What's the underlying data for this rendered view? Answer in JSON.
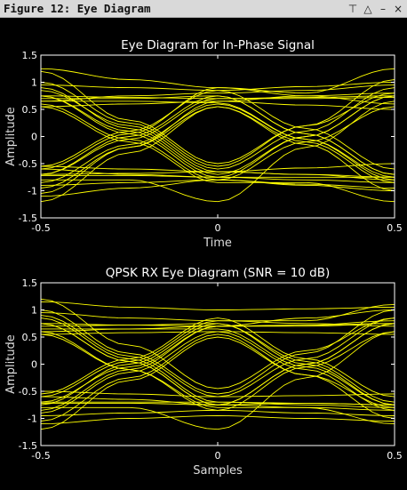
{
  "window": {
    "title": "Figure 12: Eye Diagram",
    "controls": [
      "⊤",
      "△",
      "–",
      "×"
    ]
  },
  "colors": {
    "trace": "#ffff00",
    "background": "#000000",
    "axis": "#ffffff"
  },
  "chart_data": [
    {
      "type": "line",
      "title": "Eye Diagram for In-Phase Signal",
      "xlabel": "Time",
      "ylabel": "Amplitude",
      "xlim": [
        -0.5,
        0.5
      ],
      "ylim": [
        -1.5,
        1.5
      ],
      "xticks": [
        "-0.5",
        "0",
        "0.5"
      ],
      "yticks": [
        "1.5",
        "1",
        "0.5",
        "0",
        "-0.5",
        "-1",
        "-1.5"
      ],
      "grid": false,
      "x": [
        -0.5,
        -0.25,
        0,
        0.25,
        0.5
      ],
      "series": [
        {
          "values": [
            0.75,
            0.72,
            0.7,
            0.72,
            0.75
          ]
        },
        {
          "values": [
            0.95,
            0.9,
            0.85,
            0.92,
            1.0
          ]
        },
        {
          "values": [
            0.55,
            0.6,
            0.65,
            0.58,
            0.5
          ]
        },
        {
          "values": [
            1.25,
            1.05,
            0.9,
            0.75,
            0.6
          ]
        },
        {
          "values": [
            0.65,
            0.75,
            0.8,
            0.85,
            0.95
          ]
        },
        {
          "values": [
            -0.7,
            -0.68,
            -0.65,
            -0.7,
            -0.75
          ]
        },
        {
          "values": [
            -0.9,
            -0.85,
            -0.8,
            -0.88,
            -0.95
          ]
        },
        {
          "values": [
            -0.55,
            -0.6,
            -0.65,
            -0.58,
            -0.5
          ]
        },
        {
          "values": [
            -1.1,
            -0.95,
            -0.8,
            -0.9,
            -1.0
          ]
        },
        {
          "values": [
            -0.6,
            -0.7,
            -0.75,
            -0.8,
            -0.85
          ]
        },
        {
          "values": [
            0.75,
            0.1,
            -0.7,
            0.0,
            0.75
          ]
        },
        {
          "values": [
            0.85,
            0.2,
            -0.6,
            0.1,
            0.9
          ]
        },
        {
          "values": [
            0.6,
            -0.05,
            -0.8,
            -0.1,
            0.55
          ]
        },
        {
          "values": [
            1.0,
            0.25,
            -0.55,
            0.2,
            1.05
          ]
        },
        {
          "values": [
            -0.7,
            0.0,
            0.75,
            0.05,
            -0.7
          ]
        },
        {
          "values": [
            -0.85,
            -0.15,
            0.6,
            -0.05,
            -0.8
          ]
        },
        {
          "values": [
            -0.55,
            0.1,
            0.85,
            0.15,
            -0.6
          ]
        },
        {
          "values": [
            -1.05,
            -0.2,
            0.55,
            -0.15,
            -1.0
          ]
        },
        {
          "values": [
            0.75,
            0.05,
            -0.75,
            -0.75,
            -0.75
          ]
        },
        {
          "values": [
            0.7,
            0.7,
            0.75,
            0.05,
            -0.7
          ]
        },
        {
          "values": [
            -0.7,
            -0.05,
            0.7,
            0.7,
            0.72
          ]
        },
        {
          "values": [
            -0.72,
            -0.72,
            -0.75,
            0.0,
            0.75
          ]
        },
        {
          "values": [
            0.9,
            0.15,
            -0.65,
            -0.7,
            -0.8
          ]
        },
        {
          "values": [
            -0.95,
            -0.2,
            0.65,
            0.75,
            0.8
          ]
        },
        {
          "values": [
            1.2,
            0.3,
            -0.5,
            0.2,
            0.8
          ]
        },
        {
          "values": [
            -1.2,
            -0.3,
            0.55,
            -0.1,
            -0.85
          ]
        },
        {
          "values": [
            0.65,
            0.65,
            0.62,
            -0.05,
            -0.75
          ]
        },
        {
          "values": [
            -0.8,
            -0.8,
            -1.2,
            -0.2,
            0.65
          ]
        },
        {
          "values": [
            0.55,
            -0.1,
            -0.85,
            -0.85,
            -1.2
          ]
        },
        {
          "values": [
            -0.6,
            0.05,
            0.9,
            0.8,
            1.25
          ]
        }
      ]
    },
    {
      "type": "line",
      "title": "QPSK RX Eye Diagram (SNR = 10 dB)",
      "xlabel": "Samples",
      "ylabel": "Amplitude",
      "xlim": [
        -0.5,
        0.5
      ],
      "ylim": [
        -1.5,
        1.5
      ],
      "xticks": [
        "-0.5",
        "0",
        "0.5"
      ],
      "yticks": [
        "1.5",
        "1",
        "0.5",
        "0",
        "-0.5",
        "-1",
        "-1.5"
      ],
      "grid": false,
      "x": [
        -0.5,
        -0.25,
        0,
        0.25,
        0.5
      ],
      "series": [
        {
          "values": [
            0.75,
            0.72,
            0.7,
            0.72,
            0.75
          ]
        },
        {
          "values": [
            1.15,
            1.05,
            1.0,
            1.02,
            1.05
          ]
        },
        {
          "values": [
            0.55,
            0.58,
            0.6,
            0.58,
            0.55
          ]
        },
        {
          "values": [
            0.95,
            0.85,
            0.8,
            0.75,
            0.7
          ]
        },
        {
          "values": [
            0.6,
            0.65,
            0.7,
            0.85,
            1.0
          ]
        },
        {
          "values": [
            -0.7,
            -0.7,
            -0.7,
            -0.72,
            -0.75
          ]
        },
        {
          "values": [
            -0.95,
            -0.9,
            -0.85,
            -0.9,
            -0.95
          ]
        },
        {
          "values": [
            -0.5,
            -0.55,
            -0.6,
            -0.58,
            -0.55
          ]
        },
        {
          "values": [
            -1.1,
            -1.0,
            -0.95,
            -1.0,
            -1.05
          ]
        },
        {
          "values": [
            -0.6,
            -0.65,
            -0.75,
            -0.8,
            -0.85
          ]
        },
        {
          "values": [
            0.75,
            0.05,
            -0.75,
            0.0,
            0.75
          ]
        },
        {
          "values": [
            0.9,
            0.15,
            -0.6,
            0.1,
            0.85
          ]
        },
        {
          "values": [
            0.6,
            -0.1,
            -0.85,
            -0.05,
            0.6
          ]
        },
        {
          "values": [
            1.0,
            0.2,
            -0.55,
            0.2,
            1.0
          ]
        },
        {
          "values": [
            -0.75,
            0.0,
            0.75,
            0.0,
            -0.75
          ]
        },
        {
          "values": [
            -0.9,
            -0.15,
            0.6,
            -0.1,
            -0.85
          ]
        },
        {
          "values": [
            -0.55,
            0.1,
            0.85,
            0.1,
            -0.6
          ]
        },
        {
          "values": [
            -1.05,
            -0.25,
            0.55,
            -0.2,
            -1.0
          ]
        },
        {
          "values": [
            0.75,
            0.05,
            -0.75,
            -0.72,
            -0.75
          ]
        },
        {
          "values": [
            0.7,
            0.72,
            0.75,
            0.05,
            -0.7
          ]
        },
        {
          "values": [
            -0.7,
            -0.05,
            0.7,
            0.7,
            0.75
          ]
        },
        {
          "values": [
            -0.72,
            -0.72,
            -0.75,
            0.0,
            0.75
          ]
        },
        {
          "values": [
            0.85,
            0.1,
            -0.7,
            -0.75,
            -0.8
          ]
        },
        {
          "values": [
            -0.85,
            -0.1,
            0.7,
            0.72,
            0.8
          ]
        },
        {
          "values": [
            1.2,
            0.35,
            -0.45,
            0.25,
            0.85
          ]
        },
        {
          "values": [
            -1.2,
            -0.3,
            0.5,
            -0.2,
            -0.8
          ]
        },
        {
          "values": [
            0.65,
            0.65,
            0.65,
            -0.05,
            -0.75
          ]
        },
        {
          "values": [
            -0.8,
            -0.8,
            -1.2,
            -0.25,
            0.6
          ]
        },
        {
          "values": [
            0.55,
            -0.1,
            -0.8,
            -0.8,
            -1.1
          ]
        },
        {
          "values": [
            -0.6,
            0.05,
            0.8,
            0.8,
            1.1
          ]
        }
      ]
    }
  ]
}
